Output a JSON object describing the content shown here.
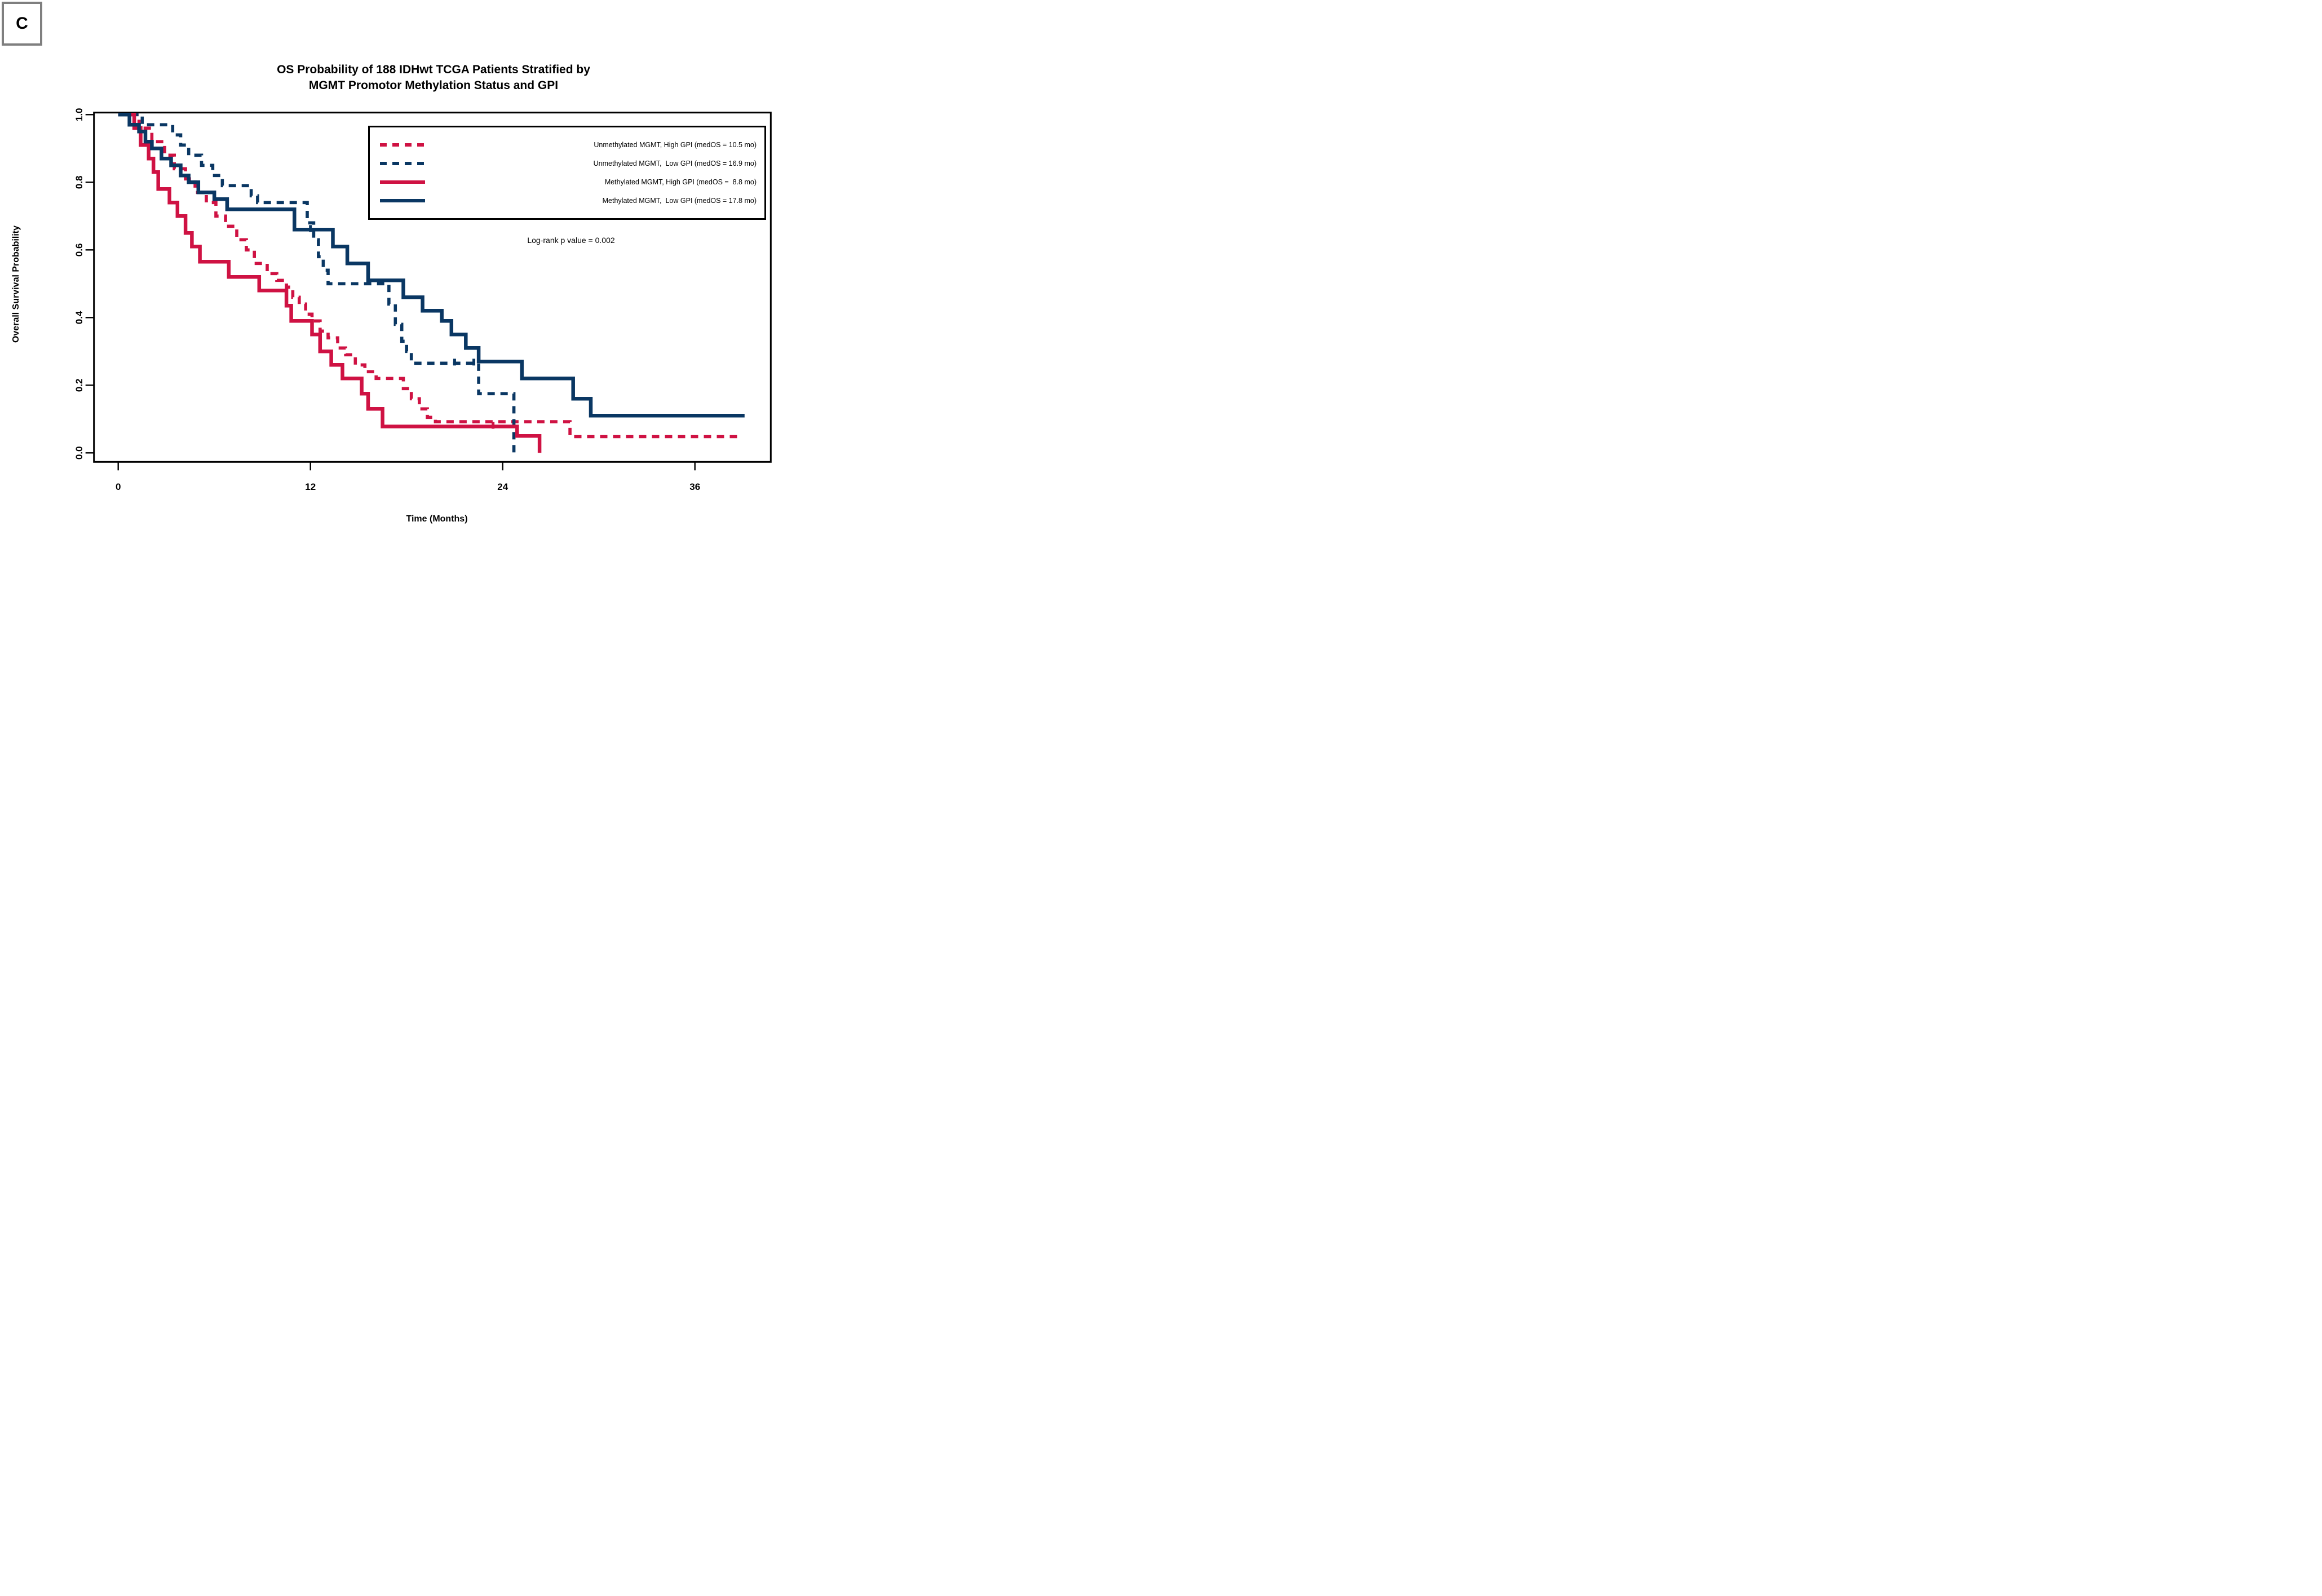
{
  "panel": {
    "label": "C"
  },
  "colors": {
    "crimson": "#CF1243",
    "navy": "#0A3763",
    "axis": "#000000",
    "panel_border": "#7f7f7f",
    "background": "#ffffff"
  },
  "chart_data": {
    "type": "line",
    "subtype": "kaplan_meier_step",
    "title": "OS Probability of 188 IDHwt TCGA Patients Stratified by MGMT Promotor Methylation Status and GPI",
    "title_lines": [
      "OS Probability of 188 IDHwt TCGA Patients Stratified by",
      "MGMT Promotor Methylation Status and GPI"
    ],
    "xlabel": "Time (Months)",
    "ylabel": "Overall Survival Probability",
    "annotation": "Log-rank p value = 0.002",
    "xlim": [
      0,
      40.5
    ],
    "ylim": [
      0.0,
      1.0
    ],
    "xticks": [
      0,
      12,
      24,
      36
    ],
    "yticks": [
      "0.0",
      "0.2",
      "0.4",
      "0.6",
      "0.8",
      "1.0"
    ],
    "grid": false,
    "legend_position": "upper right",
    "series": [
      {
        "name": "unmethylated-high-gpi",
        "label": "Unmethylated MGMT, High GPI (medOS = 10.5 mo)",
        "median_os_months": 10.5,
        "color": "#CF1243",
        "dashed": true,
        "steps": [
          [
            0,
            1.0
          ],
          [
            1.3,
            0.96
          ],
          [
            2.1,
            0.92
          ],
          [
            2.9,
            0.88
          ],
          [
            3.5,
            0.84
          ],
          [
            4.2,
            0.81
          ],
          [
            4.8,
            0.77
          ],
          [
            5.5,
            0.74
          ],
          [
            6.1,
            0.7
          ],
          [
            6.7,
            0.67
          ],
          [
            7.4,
            0.63
          ],
          [
            8.0,
            0.6
          ],
          [
            8.5,
            0.56
          ],
          [
            9.3,
            0.53
          ],
          [
            9.9,
            0.51
          ],
          [
            10.5,
            0.49
          ],
          [
            10.9,
            0.46
          ],
          [
            11.3,
            0.44
          ],
          [
            11.7,
            0.41
          ],
          [
            12.1,
            0.39
          ],
          [
            12.6,
            0.36
          ],
          [
            13.1,
            0.34
          ],
          [
            13.7,
            0.31
          ],
          [
            14.2,
            0.29
          ],
          [
            14.8,
            0.26
          ],
          [
            15.4,
            0.24
          ],
          [
            16.1,
            0.22
          ],
          [
            17.8,
            0.19
          ],
          [
            18.3,
            0.16
          ],
          [
            18.8,
            0.13
          ],
          [
            19.3,
            0.105
          ],
          [
            19.8,
            0.092
          ],
          [
            28.2,
            0.048
          ]
        ],
        "end_t": 38.8,
        "censors": []
      },
      {
        "name": "unmethylated-low-gpi",
        "label": "Unmethylated MGMT,  Low GPI (medOS = 16.9 mo)",
        "median_os_months": 16.9,
        "color": "#0A3763",
        "dashed": true,
        "steps": [
          [
            0,
            1.0
          ],
          [
            1.5,
            0.97
          ],
          [
            3.4,
            0.94
          ],
          [
            3.9,
            0.91
          ],
          [
            4.4,
            0.88
          ],
          [
            5.2,
            0.85
          ],
          [
            5.9,
            0.82
          ],
          [
            6.5,
            0.79
          ],
          [
            8.3,
            0.76
          ],
          [
            8.7,
            0.74
          ],
          [
            11.8,
            0.68
          ],
          [
            12.2,
            0.63
          ],
          [
            12.5,
            0.58
          ],
          [
            12.8,
            0.54
          ],
          [
            13.1,
            0.5
          ],
          [
            16.9,
            0.44
          ],
          [
            17.3,
            0.38
          ],
          [
            17.7,
            0.33
          ],
          [
            18.0,
            0.3
          ],
          [
            18.3,
            0.265
          ],
          [
            22.5,
            0.175
          ],
          [
            24.7,
            0.0
          ]
        ],
        "end_t": 24.8,
        "censors": [
          [
            21.0,
            0.265
          ],
          [
            22.2,
            0.265
          ]
        ]
      },
      {
        "name": "methylated-high-gpi",
        "label": "Methylated MGMT, High GPI (medOS =  8.8 mo)",
        "median_os_months": 8.8,
        "color": "#CF1243",
        "dashed": false,
        "steps": [
          [
            0,
            1.0
          ],
          [
            1.0,
            0.96
          ],
          [
            1.4,
            0.91
          ],
          [
            1.9,
            0.87
          ],
          [
            2.2,
            0.83
          ],
          [
            2.5,
            0.78
          ],
          [
            3.2,
            0.74
          ],
          [
            3.7,
            0.7
          ],
          [
            4.2,
            0.65
          ],
          [
            4.6,
            0.61
          ],
          [
            5.1,
            0.565
          ],
          [
            6.9,
            0.52
          ],
          [
            8.8,
            0.48
          ],
          [
            10.5,
            0.435
          ],
          [
            10.8,
            0.39
          ],
          [
            12.1,
            0.35
          ],
          [
            12.6,
            0.3
          ],
          [
            13.3,
            0.26
          ],
          [
            14.0,
            0.22
          ],
          [
            15.2,
            0.175
          ],
          [
            15.6,
            0.13
          ],
          [
            16.5,
            0.078
          ],
          [
            24.9,
            0.05
          ],
          [
            26.3,
            0.0
          ]
        ],
        "end_t": 26.3,
        "censors": [
          [
            23.4,
            0.078
          ]
        ]
      },
      {
        "name": "methylated-low-gpi",
        "label": "Methylated MGMT,  Low GPI (medOS = 17.8 mo)",
        "median_os_months": 17.8,
        "color": "#0A3763",
        "dashed": false,
        "steps": [
          [
            0,
            1.0
          ],
          [
            0.7,
            0.97
          ],
          [
            1.3,
            0.95
          ],
          [
            1.7,
            0.92
          ],
          [
            2.1,
            0.9
          ],
          [
            2.7,
            0.87
          ],
          [
            3.3,
            0.85
          ],
          [
            3.9,
            0.82
          ],
          [
            4.4,
            0.8
          ],
          [
            5.0,
            0.77
          ],
          [
            6.0,
            0.75
          ],
          [
            6.8,
            0.72
          ],
          [
            11.0,
            0.66
          ],
          [
            13.4,
            0.61
          ],
          [
            14.3,
            0.56
          ],
          [
            15.6,
            0.51
          ],
          [
            17.8,
            0.46
          ],
          [
            19.0,
            0.42
          ],
          [
            20.2,
            0.39
          ],
          [
            20.8,
            0.35
          ],
          [
            21.7,
            0.31
          ],
          [
            22.5,
            0.27
          ],
          [
            25.2,
            0.22
          ],
          [
            28.4,
            0.16
          ],
          [
            29.5,
            0.11
          ]
        ],
        "end_t": 39.1,
        "censors": [
          [
            12.0,
            0.66
          ]
        ]
      }
    ]
  }
}
